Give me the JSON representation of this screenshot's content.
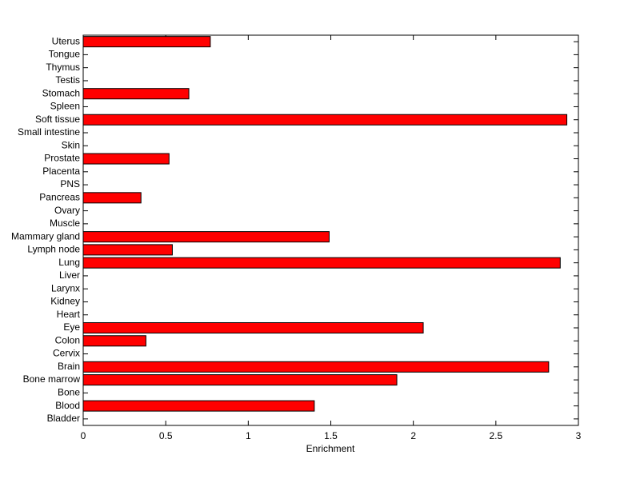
{
  "chart_data": {
    "type": "barh",
    "x_label": "Enrichment",
    "categories": [
      "Bladder",
      "Blood",
      "Bone",
      "Bone marrow",
      "Brain",
      "Cervix",
      "Colon",
      "Eye",
      "Heart",
      "Kidney",
      "Larynx",
      "Liver",
      "Lung",
      "Lymph node",
      "Mammary gland",
      "Muscle",
      "Ovary",
      "Pancreas",
      "PNS",
      "Placenta",
      "Prostate",
      "Skin",
      "Small intestine",
      "Soft tissue",
      "Spleen",
      "Stomach",
      "Testis",
      "Thymus",
      "Tongue",
      "Uterus"
    ],
    "values": [
      0,
      1.4,
      0,
      1.9,
      2.82,
      0,
      0.38,
      2.06,
      0,
      0,
      0,
      0,
      2.89,
      0.54,
      1.49,
      0,
      0,
      0.35,
      0,
      0,
      0.52,
      0,
      0,
      2.93,
      0,
      0.64,
      0,
      0,
      0,
      0.77
    ],
    "color": "#ff0000",
    "xlim": [
      0,
      3
    ],
    "xticks": [
      0,
      0.5,
      1,
      1.5,
      2,
      2.5,
      3
    ]
  }
}
